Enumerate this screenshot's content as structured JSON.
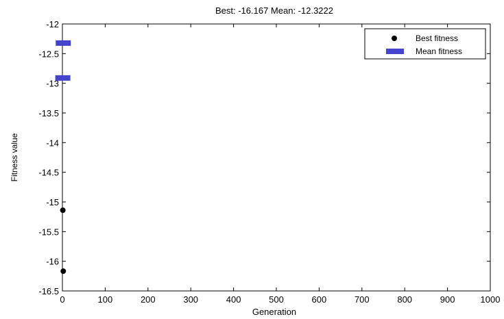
{
  "chart_data": {
    "type": "scatter",
    "title": "Best: -16.167 Mean: -12.3222",
    "xlabel": "Generation",
    "ylabel": "Fitness value",
    "xlim": [
      0,
      1000
    ],
    "ylim": [
      -16.5,
      -12
    ],
    "x_ticks": [
      0,
      100,
      200,
      300,
      400,
      500,
      600,
      700,
      800,
      900,
      1000
    ],
    "y_ticks": [
      -12,
      -12.5,
      -13,
      -13.5,
      -14,
      -14.5,
      -15,
      -15.5,
      -16,
      -16.5
    ],
    "x_tick_labels": [
      "0",
      "100",
      "200",
      "300",
      "400",
      "500",
      "600",
      "700",
      "800",
      "900",
      "1000"
    ],
    "y_tick_labels": [
      "-12",
      "-12.5",
      "-13",
      "-13.5",
      "-14",
      "-14.5",
      "-15",
      "-15.5",
      "-16",
      "-16.5"
    ],
    "grid": false,
    "legend_position": "top-right",
    "series": [
      {
        "name": "Best fitness",
        "marker": "dot",
        "color": "#000000",
        "x": [
          1,
          2
        ],
        "y": [
          -15.14,
          -16.167
        ]
      },
      {
        "name": "Mean fitness",
        "marker": "bar",
        "color": "#4444cc",
        "x": [
          1,
          2
        ],
        "y": [
          -12.91,
          -12.3222
        ]
      }
    ]
  }
}
